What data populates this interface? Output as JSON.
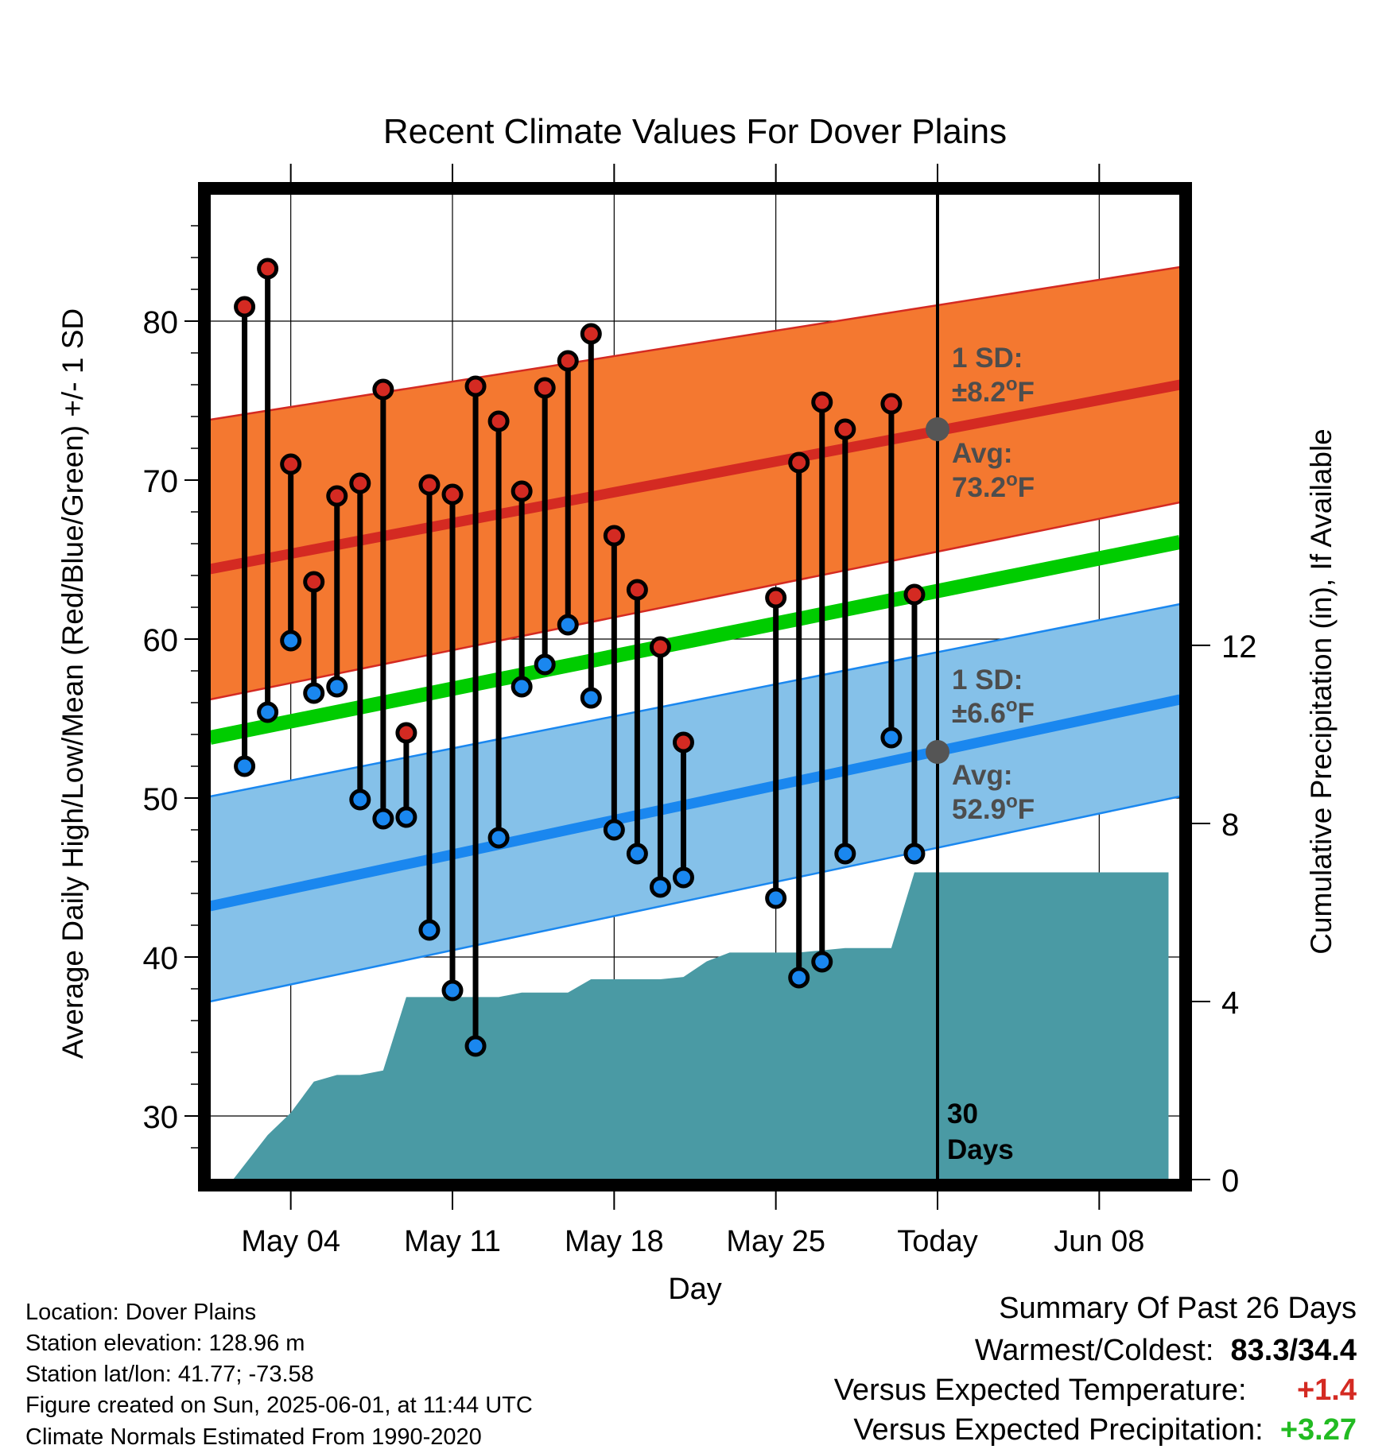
{
  "chart_data": {
    "type": "line",
    "title": "Recent Climate Values For Dover Plains",
    "xlabel": "Day",
    "ylabel_left": "Average Daily High/Low/Mean (Red/Blue/Green) +/- 1 SD",
    "ylabel_right": "Cumulative Precipitation (in), If Available",
    "x_range_days": [
      -31.5,
      10.5
    ],
    "x_note_day0": "Today",
    "ylim_left": [
      26,
      88
    ],
    "ylim_right": [
      0,
      22.14
    ],
    "left_ticks": [
      30,
      40,
      50,
      60,
      70,
      80
    ],
    "right_ticks": [
      0,
      4,
      8,
      12
    ],
    "x_ticks": [
      {
        "day": -28,
        "label": "May 04"
      },
      {
        "day": -21,
        "label": "May 11"
      },
      {
        "day": -14,
        "label": "May 18"
      },
      {
        "day": -7,
        "label": "May 25"
      },
      {
        "day": 0,
        "label": "Today"
      },
      {
        "day": 7,
        "label": "Jun 08"
      }
    ],
    "grid": true,
    "normals": {
      "high_mean": {
        "start": 64.4,
        "end": 76.0,
        "color": "#d42a22"
      },
      "high_band": {
        "lower_start": 56.2,
        "lower_end": 68.6,
        "upper_start": 73.8,
        "upper_end": 83.4,
        "color": "#f47830"
      },
      "low_mean": {
        "start": 43.2,
        "end": 56.2,
        "color": "#1a87ef"
      },
      "low_band": {
        "lower_start": 37.2,
        "lower_end": 50.1,
        "upper_start": 50.1,
        "upper_end": 62.2,
        "color": "#85c1e9"
      },
      "daily_mean": {
        "start": 53.8,
        "end": 66.1,
        "color": "#00cc00"
      }
    },
    "series": [
      {
        "name": "High",
        "color": "#d42a22",
        "points": [
          {
            "day": -30,
            "value": 80.9
          },
          {
            "day": -29,
            "value": 83.3
          },
          {
            "day": -28,
            "value": 71.0
          },
          {
            "day": -27,
            "value": 63.6
          },
          {
            "day": -26,
            "value": 69.0
          },
          {
            "day": -25,
            "value": 69.8
          },
          {
            "day": -24,
            "value": 75.7
          },
          {
            "day": -23,
            "value": 54.1
          },
          {
            "day": -22,
            "value": 69.7
          },
          {
            "day": -21,
            "value": 69.1
          },
          {
            "day": -20,
            "value": 75.9
          },
          {
            "day": -19,
            "value": 73.7
          },
          {
            "day": -18,
            "value": 69.3
          },
          {
            "day": -17,
            "value": 75.8
          },
          {
            "day": -16,
            "value": 77.5
          },
          {
            "day": -15,
            "value": 79.2
          },
          {
            "day": -14,
            "value": 66.5
          },
          {
            "day": -13,
            "value": 63.1
          },
          {
            "day": -12,
            "value": 59.5
          },
          {
            "day": -11,
            "value": 53.5
          },
          {
            "day": -7,
            "value": 62.6
          },
          {
            "day": -6,
            "value": 71.1
          },
          {
            "day": -5,
            "value": 74.9
          },
          {
            "day": -4,
            "value": 73.2
          },
          {
            "day": -2,
            "value": 74.8
          },
          {
            "day": -1,
            "value": 62.8
          }
        ]
      },
      {
        "name": "Low",
        "color": "#1a87ef",
        "points": [
          {
            "day": -30,
            "value": 52.0
          },
          {
            "day": -29,
            "value": 55.4
          },
          {
            "day": -28,
            "value": 59.9
          },
          {
            "day": -27,
            "value": 56.6
          },
          {
            "day": -26,
            "value": 57.0
          },
          {
            "day": -25,
            "value": 49.9
          },
          {
            "day": -24,
            "value": 48.7
          },
          {
            "day": -23,
            "value": 48.8
          },
          {
            "day": -22,
            "value": 41.7
          },
          {
            "day": -21,
            "value": 37.9
          },
          {
            "day": -20,
            "value": 34.4
          },
          {
            "day": -19,
            "value": 47.5
          },
          {
            "day": -18,
            "value": 57.0
          },
          {
            "day": -17,
            "value": 58.4
          },
          {
            "day": -16,
            "value": 60.9
          },
          {
            "day": -15,
            "value": 56.3
          },
          {
            "day": -14,
            "value": 48.0
          },
          {
            "day": -13,
            "value": 46.5
          },
          {
            "day": -12,
            "value": 44.4
          },
          {
            "day": -11,
            "value": 45.0
          },
          {
            "day": -7,
            "value": 43.7
          },
          {
            "day": -6,
            "value": 38.7
          },
          {
            "day": -5,
            "value": 39.7
          },
          {
            "day": -4,
            "value": 46.5
          },
          {
            "day": -2,
            "value": 53.8
          },
          {
            "day": -1,
            "value": 46.5
          }
        ]
      },
      {
        "name": "Cumulative Precipitation",
        "color": "#4a9aa4",
        "points": [
          {
            "day": -30.5,
            "value": 0.0
          },
          {
            "day": -29,
            "value": 1.0
          },
          {
            "day": -28,
            "value": 1.5
          },
          {
            "day": -27,
            "value": 2.2
          },
          {
            "day": -26,
            "value": 2.35
          },
          {
            "day": -25,
            "value": 2.35
          },
          {
            "day": -24,
            "value": 2.45
          },
          {
            "day": -23,
            "value": 4.1
          },
          {
            "day": -22,
            "value": 4.1
          },
          {
            "day": -21,
            "value": 4.1
          },
          {
            "day": -20,
            "value": 4.1
          },
          {
            "day": -19,
            "value": 4.1
          },
          {
            "day": -18,
            "value": 4.2
          },
          {
            "day": -17,
            "value": 4.2
          },
          {
            "day": -16,
            "value": 4.2
          },
          {
            "day": -15,
            "value": 4.5
          },
          {
            "day": -14,
            "value": 4.5
          },
          {
            "day": -13,
            "value": 4.5
          },
          {
            "day": -12,
            "value": 4.5
          },
          {
            "day": -11,
            "value": 4.55
          },
          {
            "day": -10,
            "value": 4.9
          },
          {
            "day": -9,
            "value": 5.1
          },
          {
            "day": -8,
            "value": 5.1
          },
          {
            "day": -7,
            "value": 5.1
          },
          {
            "day": -6,
            "value": 5.1
          },
          {
            "day": -5,
            "value": 5.15
          },
          {
            "day": -4,
            "value": 5.2
          },
          {
            "day": -3,
            "value": 5.2
          },
          {
            "day": -2,
            "value": 5.2
          },
          {
            "day": -1,
            "value": 6.9
          },
          {
            "day": 10,
            "value": 6.9
          }
        ]
      }
    ],
    "annotations": {
      "high_sd_label": "1 SD:",
      "high_sd_value": "±8.2",
      "high_avg_label": "Avg:",
      "high_avg_value": "73.2",
      "high_avg_point": 73.2,
      "low_sd_label": "1 SD:",
      "low_sd_value": "±6.6",
      "low_avg_label": "Avg:",
      "low_avg_value": "52.9",
      "low_avg_point": 52.9,
      "degree_unit": "o",
      "unit_f": "F",
      "window_count": "30",
      "window_label": "Days"
    }
  },
  "station": {
    "location": "Location: Dover Plains",
    "elevation": "Station elevation: 128.96 m",
    "latlon": "Station lat/lon: 41.77; -73.58",
    "created": "Figure created on Sun, 2025-06-01, at 11:44 UTC",
    "normals": "Climate Normals Estimated From 1990-2020"
  },
  "summary": {
    "title": "Summary Of Past 26 Days",
    "warm_cold_label": "Warmest/Coldest:",
    "warm_cold_value": "83.3/34.4",
    "temp_label": "Versus Expected Temperature:",
    "temp_value": "+1.4",
    "temp_color": "#d42a22",
    "precip_label": "Versus Expected Precipitation:",
    "precip_value": "+3.27",
    "precip_color": "#22bb22"
  }
}
